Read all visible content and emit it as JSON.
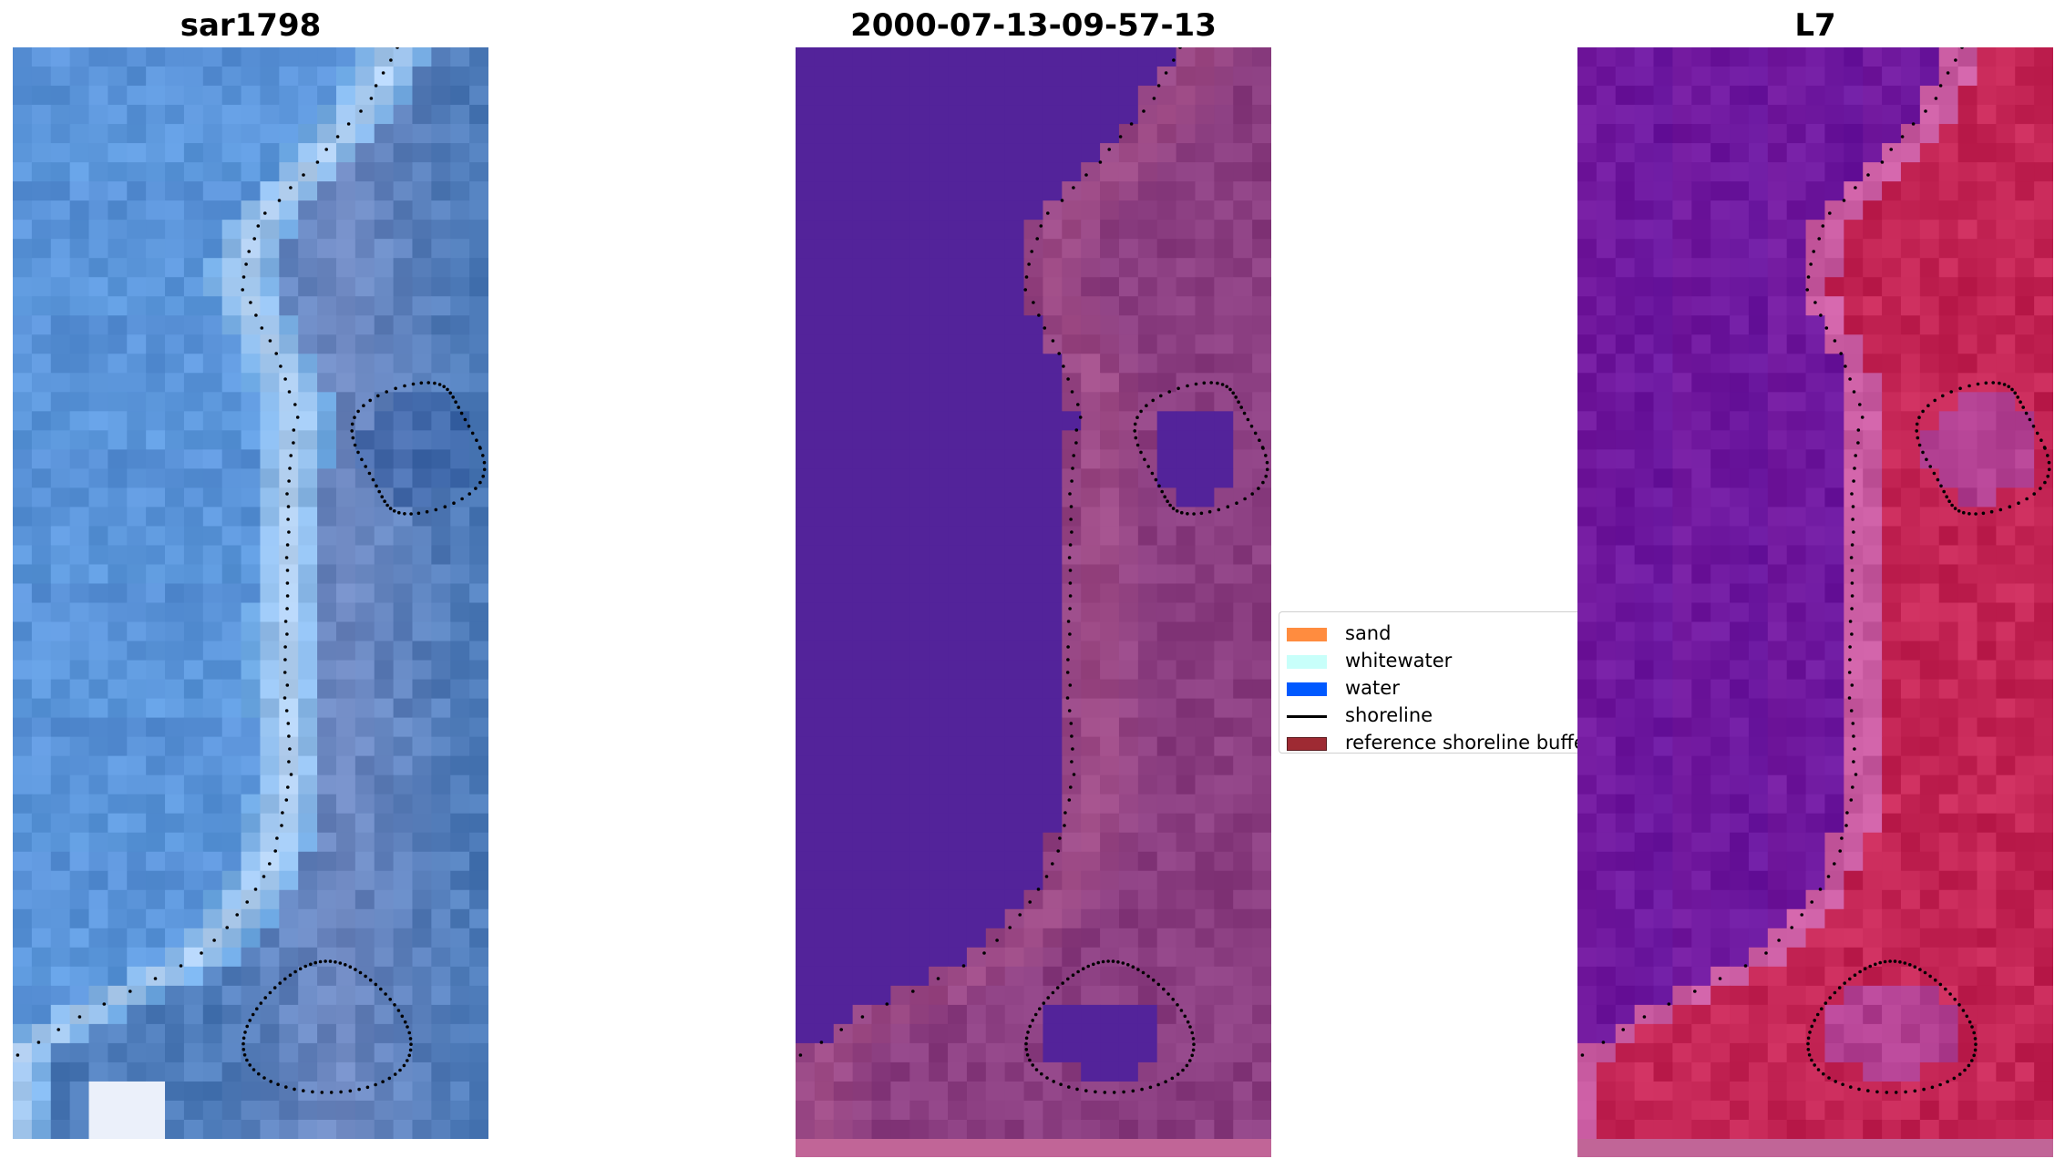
{
  "panels": [
    {
      "title": "sar1798",
      "palette": "rgb"
    },
    {
      "title": "2000-07-13-09-57-13",
      "palette": "classified"
    },
    {
      "title": "L7",
      "palette": "index"
    }
  ],
  "legend": {
    "items": [
      {
        "label": "sand",
        "kind": "patch",
        "color": "#ff8c3f"
      },
      {
        "label": "whitewater",
        "kind": "patch",
        "color": "#c8fffa"
      },
      {
        "label": "water",
        "kind": "patch",
        "color": "#0059ff"
      },
      {
        "label": "shoreline",
        "kind": "line",
        "color": "#000000"
      },
      {
        "label": "reference shoreline buffer",
        "kind": "patch",
        "color": "#9e2a33"
      }
    ]
  },
  "colors": {
    "sar_water": "#5a92d8",
    "sar_land": "#4e7cba",
    "classified_water": "#53239a",
    "classified_land": "#8a3d80",
    "index_water": "#72199e",
    "index_land": "#c42555",
    "shoreline_dots": "#000000"
  }
}
